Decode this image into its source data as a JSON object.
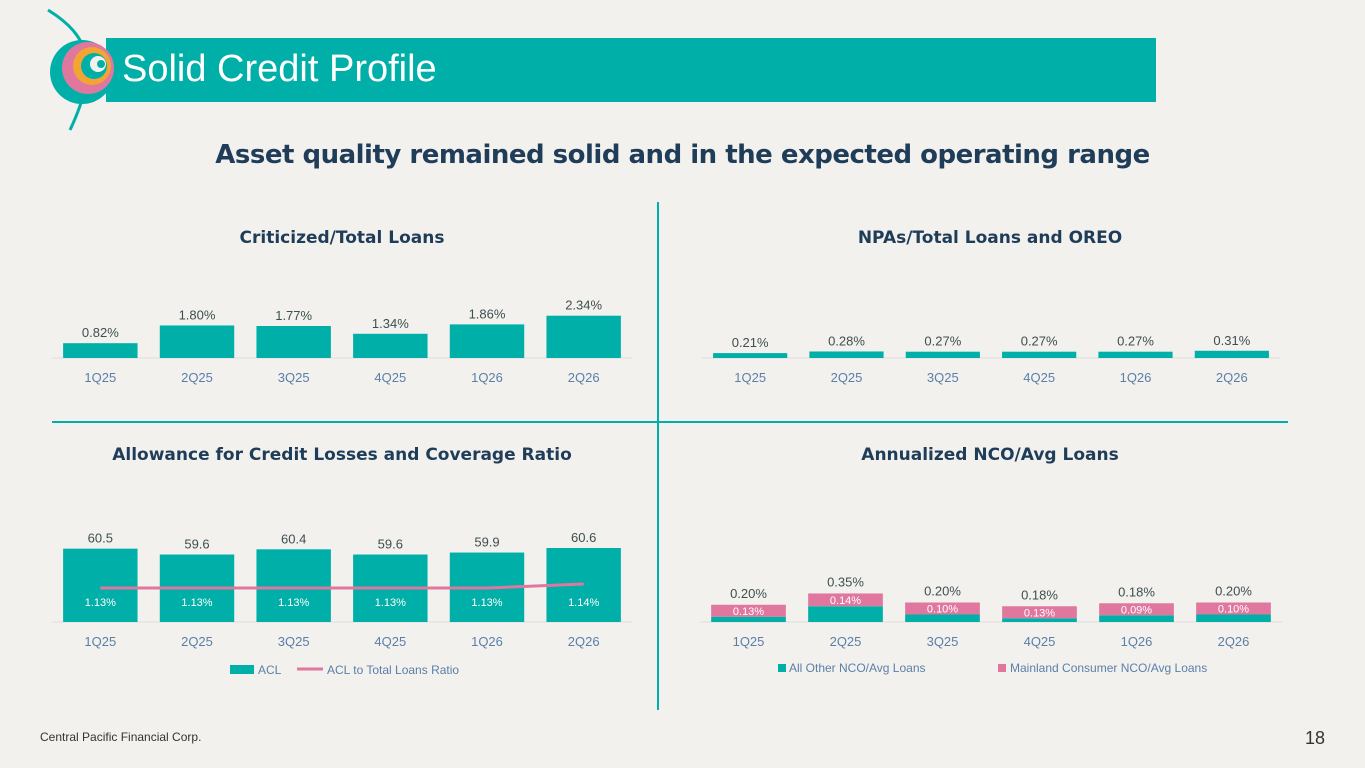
{
  "header": {
    "title": "Solid Credit Profile",
    "subtitle": "Asset quality remained solid and in the expected operating range"
  },
  "footer": {
    "company": "Central Pacific Financial Corp.",
    "page": "18"
  },
  "colors": {
    "teal": "#00b0a8",
    "pink": "#e0779f",
    "navy": "#1f3d59"
  },
  "chart_data": [
    {
      "id": "criticized",
      "type": "bar",
      "title": "Criticized/Total Loans",
      "categories": [
        "1Q25",
        "2Q25",
        "3Q25",
        "4Q25",
        "1Q26",
        "2Q26"
      ],
      "values": [
        0.82,
        1.8,
        1.77,
        1.34,
        1.86,
        2.34
      ],
      "labels": [
        "0.82%",
        "1.80%",
        "1.77%",
        "1.34%",
        "1.86%",
        "2.34%"
      ],
      "ylim": [
        0,
        2.6
      ]
    },
    {
      "id": "npas",
      "type": "bar",
      "title": "NPAs/Total Loans and OREO",
      "categories": [
        "1Q25",
        "2Q25",
        "3Q25",
        "4Q25",
        "1Q26",
        "2Q26"
      ],
      "values": [
        0.21,
        0.28,
        0.27,
        0.27,
        0.27,
        0.31
      ],
      "labels": [
        "0.21%",
        "0.28%",
        "0.27%",
        "0.27%",
        "0.27%",
        "0.31%"
      ],
      "ylim": [
        0,
        1.2
      ]
    },
    {
      "id": "acl",
      "type": "bar",
      "title": "Allowance for Credit Losses and Coverage Ratio",
      "categories": [
        "1Q25",
        "2Q25",
        "3Q25",
        "4Q25",
        "1Q26",
        "2Q26"
      ],
      "series": [
        {
          "name": "ACL",
          "type": "bar",
          "values": [
            60.5,
            59.6,
            60.4,
            59.6,
            59.9,
            60.6
          ],
          "labels": [
            "60.5",
            "59.6",
            "60.4",
            "59.6",
            "59.9",
            "60.6"
          ]
        },
        {
          "name": "ACL to Total Loans Ratio",
          "type": "line",
          "values": [
            1.13,
            1.13,
            1.13,
            1.13,
            1.13,
            1.14
          ],
          "labels": [
            "1.13%",
            "1.13%",
            "1.13%",
            "1.13%",
            "1.13%",
            "1.14%"
          ]
        }
      ],
      "legend": "bottom"
    },
    {
      "id": "nco",
      "type": "bar",
      "stacked": true,
      "title": "Annualized NCO/Avg Loans",
      "categories": [
        "1Q25",
        "2Q25",
        "3Q25",
        "4Q25",
        "1Q26",
        "2Q26"
      ],
      "totals": [
        "0.20%",
        "0.35%",
        "0.20%",
        "0.18%",
        "0.18%",
        "0.20%"
      ],
      "series": [
        {
          "name": "All Other NCO/Avg Loans",
          "values": [
            0.07,
            0.21,
            0.1,
            0.05,
            0.09,
            0.1
          ]
        },
        {
          "name": "Mainland Consumer NCO/Avg Loans",
          "values": [
            0.13,
            0.14,
            0.1,
            0.13,
            0.09,
            0.1
          ],
          "labels": [
            "0.13%",
            "0.14%",
            "0.10%",
            "0.13%",
            "0.09%",
            "0.10%"
          ]
        }
      ],
      "ylim": [
        0,
        0.8
      ],
      "legend": "bottom"
    }
  ]
}
